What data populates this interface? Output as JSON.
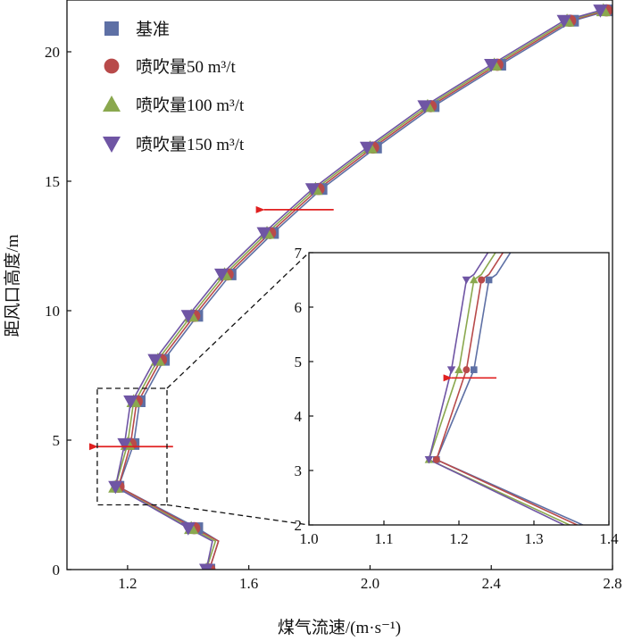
{
  "chart_data": [
    {
      "type": "line",
      "xlabel": "煤气流速/(m·s⁻¹)",
      "ylabel": "距风口高度/m",
      "xlim": [
        1.0,
        2.8
      ],
      "ylim": [
        0,
        22
      ],
      "xticks": [
        "1.2",
        "1.6",
        "2.0",
        "2.4",
        "2.8"
      ],
      "yticks": [
        "0",
        "5",
        "10",
        "15",
        "20"
      ],
      "grid": false,
      "legend": "top-left",
      "series": [
        {
          "name": "基准",
          "marker": "square",
          "color": "#5e70a5",
          "x": [
            1.47,
            1.5,
            1.43,
            1.17,
            1.22,
            1.24,
            1.25,
            1.32,
            1.43,
            1.54,
            1.68,
            1.84,
            2.02,
            2.21,
            2.43,
            2.67,
            2.79
          ],
          "y": [
            0,
            1.1,
            1.6,
            3.2,
            4.85,
            6.5,
            6.6,
            8.1,
            9.8,
            11.4,
            13.0,
            14.7,
            16.3,
            17.9,
            19.5,
            21.2,
            21.6
          ]
        },
        {
          "name": "喷吹量50 m³/t",
          "marker": "circle",
          "color": "#b84a4a",
          "x": [
            1.47,
            1.5,
            1.42,
            1.17,
            1.21,
            1.23,
            1.24,
            1.31,
            1.42,
            1.53,
            1.67,
            1.83,
            2.01,
            2.2,
            2.42,
            2.66,
            2.78
          ],
          "y": [
            0,
            1.1,
            1.6,
            3.2,
            4.85,
            6.5,
            6.6,
            8.1,
            9.8,
            11.4,
            13.0,
            14.7,
            16.3,
            17.9,
            19.5,
            21.2,
            21.6
          ]
        },
        {
          "name": "喷吹量100 m³/t",
          "marker": "triangle",
          "color": "#8aa84e",
          "x": [
            1.46,
            1.49,
            1.41,
            1.16,
            1.2,
            1.22,
            1.23,
            1.3,
            1.41,
            1.52,
            1.66,
            1.82,
            2.0,
            2.19,
            2.41,
            2.65,
            2.77
          ],
          "y": [
            0,
            1.1,
            1.6,
            3.2,
            4.85,
            6.5,
            6.6,
            8.1,
            9.8,
            11.4,
            13.0,
            14.7,
            16.3,
            17.9,
            19.5,
            21.2,
            21.6
          ]
        },
        {
          "name": "喷吹量150 m³/t",
          "marker": "triangle-down",
          "color": "#6f55a4",
          "x": [
            1.46,
            1.48,
            1.4,
            1.16,
            1.19,
            1.21,
            1.22,
            1.29,
            1.4,
            1.51,
            1.65,
            1.81,
            1.99,
            2.18,
            2.4,
            2.64,
            2.76
          ],
          "y": [
            0,
            1.1,
            1.6,
            3.2,
            4.85,
            6.5,
            6.6,
            8.1,
            9.8,
            11.4,
            13.0,
            14.7,
            16.3,
            17.9,
            19.5,
            21.2,
            21.6
          ]
        }
      ],
      "markers_at_y": [
        0,
        1.6,
        3.2,
        4.85,
        6.5,
        8.1,
        9.8,
        11.4,
        13.0,
        14.7,
        16.3,
        17.9,
        19.5,
        21.2,
        21.6
      ],
      "annotations": [
        {
          "type": "arrow",
          "direction": "left",
          "color": "#e02020",
          "x_from": 1.88,
          "x_to": 1.65,
          "y": 13.9
        },
        {
          "type": "arrow",
          "direction": "left",
          "color": "#e02020",
          "x_from": 1.35,
          "x_to": 1.1,
          "y": 4.75
        },
        {
          "type": "zoom-box",
          "x_range": [
            1.1,
            1.33
          ],
          "y_range": [
            2.5,
            7.0
          ]
        }
      ]
    },
    {
      "type": "line",
      "xlim": [
        1.0,
        1.4
      ],
      "ylim": [
        2,
        7
      ],
      "xticks": [
        "1.0",
        "1.1",
        "1.2",
        "1.3",
        "1.4"
      ],
      "yticks": [
        "2",
        "3",
        "4",
        "5",
        "6",
        "7"
      ],
      "annotations": [
        {
          "type": "arrow",
          "direction": "left",
          "color": "#e02020",
          "x_from": 1.25,
          "x_to": 1.19,
          "y": 4.7
        }
      ]
    }
  ]
}
